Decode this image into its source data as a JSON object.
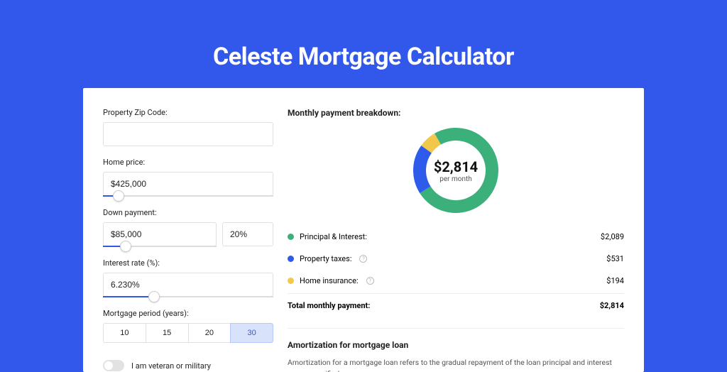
{
  "title": "Celeste Mortgage Calculator",
  "colors": {
    "page_bg": "#3158eb",
    "card_bg": "#ffffff",
    "principal": "#3bb07a",
    "taxes": "#2f5beb",
    "insurance": "#f2c84b"
  },
  "form": {
    "zip": {
      "label": "Property Zip Code:",
      "value": ""
    },
    "home_price": {
      "label": "Home price:",
      "value": "$425,000",
      "slider_pct": 9
    },
    "down_payment": {
      "label": "Down payment:",
      "value": "$85,000",
      "pct_value": "20%",
      "slider_pct": 20
    },
    "interest": {
      "label": "Interest rate (%):",
      "value": "6.230%",
      "slider_pct": 30
    },
    "period": {
      "label": "Mortgage period (years):",
      "options": [
        "10",
        "15",
        "20",
        "30"
      ],
      "active": "30"
    },
    "veteran": {
      "label": "I am veteran or military",
      "checked": false
    }
  },
  "breakdown": {
    "title": "Monthly payment breakdown:",
    "center_amount": "$2,814",
    "center_sub": "per month",
    "donut": {
      "size": 120,
      "stroke": 18,
      "slices": [
        {
          "key": "principal",
          "pct": 74.2
        },
        {
          "key": "taxes",
          "pct": 18.9
        },
        {
          "key": "insurance",
          "pct": 6.9
        }
      ]
    },
    "items": [
      {
        "label": "Principal & Interest:",
        "value": "$2,089",
        "color_key": "principal",
        "info": false
      },
      {
        "label": "Property taxes:",
        "value": "$531",
        "color_key": "taxes",
        "info": true
      },
      {
        "label": "Home insurance:",
        "value": "$194",
        "color_key": "insurance",
        "info": true
      }
    ],
    "total": {
      "label": "Total monthly payment:",
      "value": "$2,814"
    }
  },
  "amortization": {
    "title": "Amortization for mortgage loan",
    "text": "Amortization for a mortgage loan refers to the gradual repayment of the loan principal and interest over a specified"
  }
}
